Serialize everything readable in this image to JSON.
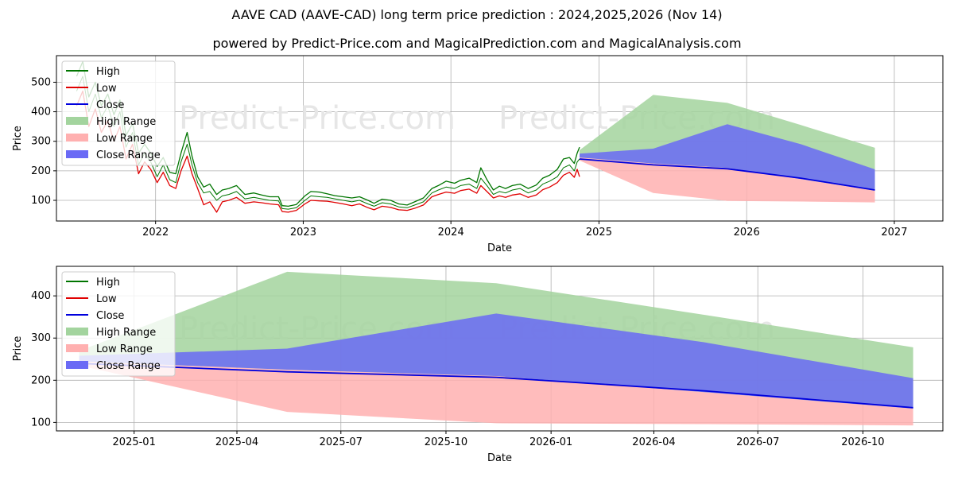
{
  "title": "AAVE CAD (AAVE-CAD) long term price prediction : 2024,2025,2026 (Nov 14)",
  "subtitle": "powered by Predict-Price.com and MagicalPrediction.com and MagicalAnalysis.com",
  "watermark": "Predict-Price.com",
  "colors": {
    "high": "#007500",
    "low": "#e00000",
    "close": "#0000dd",
    "high_range": "#a3d49e",
    "low_range": "#ffb0b0",
    "close_range": "#6a6af5"
  },
  "chart_data": [
    {
      "type": "line",
      "xlabel": "Date",
      "ylabel": "Price",
      "xlim": [
        "2021-05-01",
        "2027-05-01"
      ],
      "ylim": [
        30,
        590
      ],
      "yticks": [
        100,
        200,
        300,
        400,
        500
      ],
      "xticks": [
        "2022-01-01",
        "2023-01-01",
        "2024-01-01",
        "2025-01-01",
        "2026-01-01",
        "2027-01-01"
      ],
      "xtick_labels": [
        "2022",
        "2023",
        "2024",
        "2025",
        "2026",
        "2027"
      ],
      "legend": [
        "High",
        "Low",
        "Close",
        "High Range",
        "Low Range",
        "Close Range"
      ],
      "legend_position": "upper-left",
      "grid": true,
      "history": {
        "dates": [
          "2021-06-20",
          "2021-07-05",
          "2021-07-20",
          "2021-08-05",
          "2021-08-20",
          "2021-09-05",
          "2021-09-20",
          "2021-10-05",
          "2021-10-20",
          "2021-11-05",
          "2021-11-20",
          "2021-12-05",
          "2021-12-20",
          "2022-01-05",
          "2022-01-20",
          "2022-02-05",
          "2022-02-20",
          "2022-03-05",
          "2022-03-20",
          "2022-04-01",
          "2022-04-15",
          "2022-04-30",
          "2022-05-15",
          "2022-06-01",
          "2022-06-15",
          "2022-07-01",
          "2022-07-20",
          "2022-08-10",
          "2022-09-01",
          "2022-09-20",
          "2022-10-10",
          "2022-11-01",
          "2022-11-10",
          "2022-11-25",
          "2022-12-15",
          "2023-01-05",
          "2023-01-20",
          "2023-02-10",
          "2023-03-01",
          "2023-03-20",
          "2023-04-10",
          "2023-05-01",
          "2023-05-20",
          "2023-06-10",
          "2023-06-25",
          "2023-07-15",
          "2023-08-05",
          "2023-08-25",
          "2023-09-15",
          "2023-10-05",
          "2023-10-25",
          "2023-11-15",
          "2023-12-01",
          "2023-12-20",
          "2024-01-10",
          "2024-01-25",
          "2024-02-15",
          "2024-03-05",
          "2024-03-15",
          "2024-03-30",
          "2024-04-15",
          "2024-04-30",
          "2024-05-15",
          "2024-06-01",
          "2024-06-20",
          "2024-07-10",
          "2024-07-30",
          "2024-08-15",
          "2024-09-01",
          "2024-09-20",
          "2024-10-05",
          "2024-10-20",
          "2024-11-01",
          "2024-11-08",
          "2024-11-14"
        ],
        "close": [
          470,
          520,
          400,
          460,
          380,
          420,
          350,
          400,
          280,
          330,
          220,
          260,
          230,
          180,
          220,
          170,
          160,
          230,
          290,
          220,
          160,
          125,
          130,
          100,
          115,
          120,
          130,
          105,
          110,
          105,
          100,
          98,
          72,
          70,
          75,
          100,
          115,
          112,
          110,
          105,
          100,
          95,
          100,
          88,
          80,
          92,
          88,
          78,
          75,
          85,
          95,
          125,
          135,
          145,
          140,
          150,
          155,
          140,
          175,
          150,
          120,
          130,
          125,
          135,
          140,
          125,
          135,
          155,
          165,
          180,
          210,
          220,
          200,
          230,
          240
        ],
        "high": [
          520,
          570,
          450,
          500,
          420,
          460,
          390,
          440,
          320,
          360,
          260,
          290,
          260,
          215,
          245,
          195,
          190,
          260,
          330,
          250,
          180,
          145,
          155,
          120,
          135,
          140,
          150,
          120,
          125,
          118,
          112,
          112,
          82,
          80,
          86,
          115,
          130,
          128,
          122,
          116,
          112,
          108,
          112,
          100,
          90,
          104,
          100,
          88,
          84,
          96,
          108,
          140,
          150,
          165,
          158,
          168,
          175,
          160,
          210,
          170,
          135,
          148,
          140,
          150,
          155,
          140,
          152,
          175,
          185,
          205,
          240,
          245,
          225,
          260,
          280
        ],
        "low": [
          420,
          470,
          350,
          410,
          330,
          370,
          300,
          350,
          240,
          290,
          190,
          230,
          205,
          160,
          195,
          150,
          140,
          200,
          250,
          190,
          140,
          85,
          95,
          60,
          95,
          100,
          110,
          90,
          95,
          92,
          88,
          85,
          62,
          60,
          66,
          88,
          100,
          98,
          97,
          93,
          88,
          82,
          88,
          75,
          68,
          80,
          76,
          68,
          66,
          74,
          84,
          112,
          120,
          128,
          124,
          133,
          138,
          124,
          150,
          130,
          108,
          115,
          110,
          118,
          122,
          110,
          118,
          136,
          145,
          160,
          185,
          195,
          178,
          205,
          180
        ]
      },
      "forecast": {
        "dates": [
          "2024-11-14",
          "2025-05-15",
          "2025-11-14",
          "2026-05-15",
          "2026-11-14"
        ],
        "close": [
          240,
          220,
          207,
          175,
          135
        ],
        "high_range_upper": [
          270,
          457,
          430,
          355,
          278
        ],
        "low_range_lower": [
          235,
          125,
          98,
          96,
          93
        ],
        "close_range_upper": [
          258,
          275,
          358,
          290,
          205
        ],
        "close_range_lower": [
          245,
          225,
          210,
          172,
          133
        ]
      }
    },
    {
      "type": "line",
      "xlabel": "Date",
      "ylabel": "Price",
      "xlim": [
        "2024-10-25",
        "2026-12-10"
      ],
      "ylim": [
        80,
        470
      ],
      "yticks": [
        100,
        200,
        300,
        400
      ],
      "xticks": [
        "2025-01-01",
        "2025-04-01",
        "2025-07-01",
        "2025-10-01",
        "2026-01-01",
        "2026-04-01",
        "2026-07-01",
        "2026-10-01"
      ],
      "xtick_labels": [
        "2025-01",
        "2025-04",
        "2025-07",
        "2025-10",
        "2026-01",
        "2026-04",
        "2026-07",
        "2026-10"
      ],
      "legend": [
        "High",
        "Low",
        "Close",
        "High Range",
        "Low Range",
        "Close Range"
      ],
      "legend_position": "upper-left",
      "grid": true,
      "forecast": {
        "dates": [
          "2024-11-14",
          "2025-05-15",
          "2025-11-14",
          "2026-05-15",
          "2026-11-14"
        ],
        "close": [
          240,
          220,
          207,
          175,
          135
        ],
        "high_range_upper": [
          270,
          457,
          430,
          355,
          278
        ],
        "low_range_lower": [
          235,
          125,
          98,
          96,
          93
        ],
        "close_range_upper": [
          258,
          275,
          358,
          290,
          205
        ],
        "close_range_lower": [
          245,
          225,
          210,
          172,
          133
        ]
      }
    }
  ]
}
